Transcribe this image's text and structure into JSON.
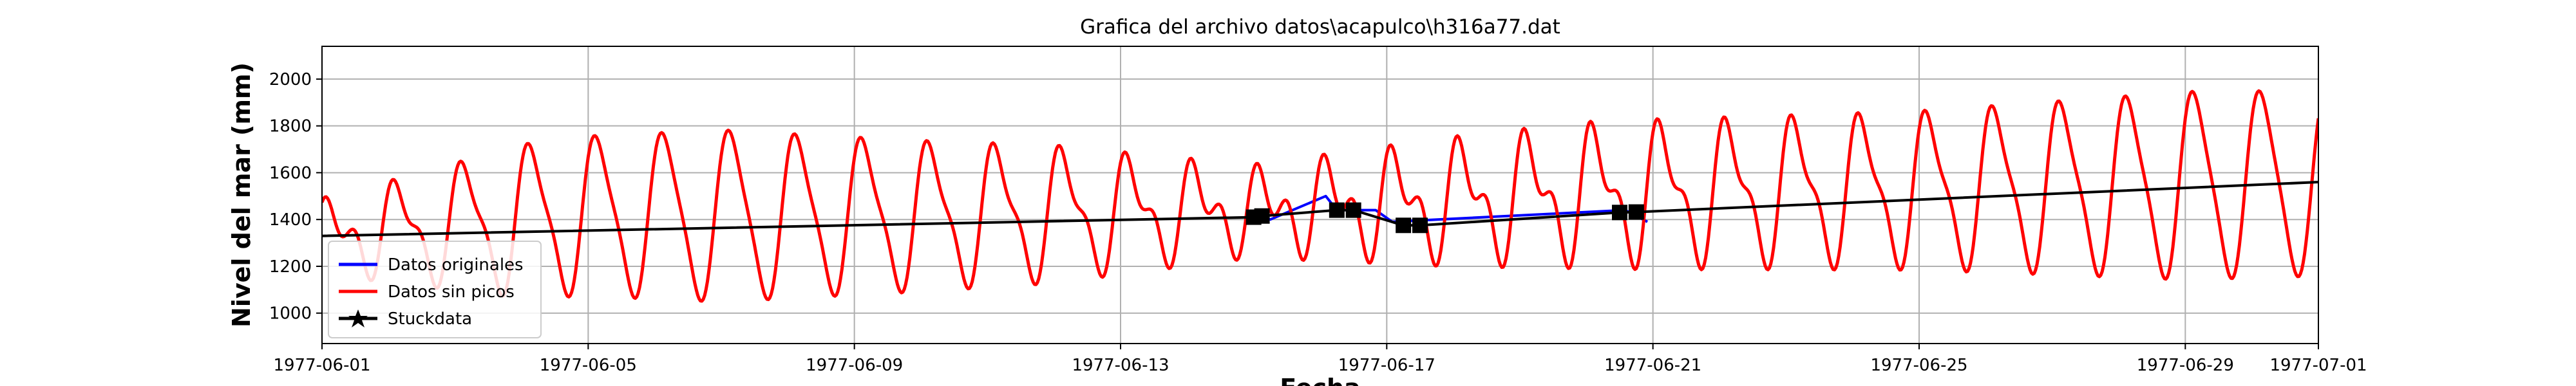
{
  "chart_data": {
    "type": "line",
    "title": "Grafica del archivo datos\\acapulco\\h316a77.dat",
    "xlabel": "Fecha",
    "ylabel": "Nivel del mar (mm)",
    "x_range": [
      "1977-06-01",
      "1977-07-01"
    ],
    "ylim": [
      870,
      2140
    ],
    "grid": true,
    "legend_position": "lower-left",
    "x_ticks": [
      "1977-06-01",
      "1977-06-05",
      "1977-06-09",
      "1977-06-13",
      "1977-06-17",
      "1977-06-21",
      "1977-06-25",
      "1977-06-29",
      "1977-07-01"
    ],
    "y_ticks": [
      1000,
      1200,
      1400,
      1600,
      1800,
      2000
    ],
    "tide_model": {
      "start": "1977-06-01",
      "end": "1977-07-01",
      "period_days": 1.0,
      "semi_period_days": 0.5,
      "mean": [
        [
          "1977-06-01",
          1330
        ],
        [
          "1977-06-05",
          1420
        ],
        [
          "1977-06-10",
          1420
        ],
        [
          "1977-06-15",
          1440
        ],
        [
          "1977-06-20",
          1510
        ],
        [
          "1977-06-25",
          1530
        ],
        [
          "1977-06-29",
          1550
        ],
        [
          "1977-07-01",
          1560
        ]
      ],
      "diurnal_amplitude": [
        [
          "1977-06-01",
          100
        ],
        [
          "1977-06-04",
          300
        ],
        [
          "1977-06-07",
          350
        ],
        [
          "1977-06-12",
          250
        ],
        [
          "1977-06-15",
          120
        ],
        [
          "1977-06-18",
          200
        ],
        [
          "1977-06-21",
          250
        ],
        [
          "1977-06-25",
          300
        ],
        [
          "1977-06-29",
          380
        ],
        [
          "1977-07-01",
          380
        ]
      ],
      "semidiurnal_amplitude": [
        [
          "1977-06-01",
          90
        ],
        [
          "1977-06-07",
          60
        ],
        [
          "1977-06-15",
          110
        ],
        [
          "1977-06-20",
          130
        ],
        [
          "1977-06-25",
          90
        ],
        [
          "1977-07-01",
          60
        ]
      ]
    },
    "series": [
      {
        "name": "Datos originales",
        "color": "#0000ff",
        "points": [
          [
            "1977-06-15 00:00",
            1430
          ],
          [
            "1977-06-15 06:00",
            1400
          ],
          [
            "1977-06-16 02:00",
            1500
          ],
          [
            "1977-06-16 06:00",
            1440
          ],
          [
            "1977-06-16 20:00",
            1440
          ],
          [
            "1977-06-17 02:00",
            1390
          ],
          [
            "1977-06-20 14:00",
            1440
          ],
          [
            "1977-06-20 22:00",
            1390
          ]
        ]
      },
      {
        "name": "Datos sin picos",
        "color": "#ff0000",
        "source": "tide_model"
      },
      {
        "name": "Stuckdata",
        "color": "#000000",
        "marker": "star",
        "points": [
          [
            "1977-06-01 00:00",
            1330
          ],
          [
            "1977-06-15 00:00",
            1410
          ],
          [
            "1977-06-15 03:00",
            1415
          ],
          [
            "1977-06-16 06:00",
            1440
          ],
          [
            "1977-06-16 12:00",
            1440
          ],
          [
            "1977-06-17 06:00",
            1375
          ],
          [
            "1977-06-17 12:00",
            1375
          ],
          [
            "1977-06-20 12:00",
            1430
          ],
          [
            "1977-06-20 18:00",
            1432
          ],
          [
            "1977-07-01 00:00",
            1560
          ]
        ]
      }
    ]
  }
}
